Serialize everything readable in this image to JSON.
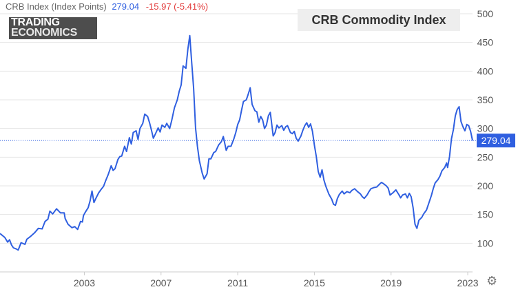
{
  "header": {
    "name": "CRB Index (Index Points)",
    "price": "279.04",
    "change": "-15.97 (-5.41%)"
  },
  "logo": {
    "line1": "TRADING",
    "line2": "ECONOMICS"
  },
  "chart_title": "CRB Commodity Index",
  "settings_icon": "gear-icon",
  "colors": {
    "line": "#2f5fe0",
    "price_tag": "#2f5fe0",
    "change": "#e23b3b",
    "grid": "#e6e6e6"
  },
  "chart_data": {
    "type": "line",
    "title": "CRB Commodity Index",
    "xlabel": "",
    "ylabel": "",
    "xlim": [
      1998.6,
      2023.25
    ],
    "ylim": [
      50,
      500
    ],
    "x_ticks": [
      "2003",
      "2007",
      "2011",
      "2015",
      "2019",
      "2023"
    ],
    "y_ticks": [
      "100",
      "150",
      "200",
      "250",
      "300",
      "350",
      "400",
      "450",
      "500"
    ],
    "grid": "horizontal",
    "current_value": "279.04",
    "series": [
      {
        "points": [
          [
            1998.6,
            117
          ],
          [
            1998.85,
            110
          ],
          [
            1999.0,
            102
          ],
          [
            1999.1,
            106
          ],
          [
            1999.2,
            97
          ],
          [
            1999.3,
            92
          ],
          [
            1999.45,
            90
          ],
          [
            1999.55,
            88
          ],
          [
            1999.7,
            101
          ],
          [
            1999.9,
            98
          ],
          [
            2000.0,
            107
          ],
          [
            2000.2,
            112
          ],
          [
            2000.4,
            118
          ],
          [
            2000.6,
            126
          ],
          [
            2000.8,
            125
          ],
          [
            2000.95,
            138
          ],
          [
            2001.1,
            142
          ],
          [
            2001.2,
            156
          ],
          [
            2001.35,
            151
          ],
          [
            2001.55,
            160
          ],
          [
            2001.75,
            153
          ],
          [
            2001.95,
            153
          ],
          [
            2002.0,
            143
          ],
          [
            2002.15,
            133
          ],
          [
            2002.35,
            127
          ],
          [
            2002.5,
            129
          ],
          [
            2002.65,
            124
          ],
          [
            2002.8,
            138
          ],
          [
            2002.9,
            137
          ],
          [
            2002.95,
            148
          ],
          [
            2003.05,
            154
          ],
          [
            2003.2,
            162
          ],
          [
            2003.3,
            174
          ],
          [
            2003.4,
            191
          ],
          [
            2003.5,
            171
          ],
          [
            2003.6,
            178
          ],
          [
            2003.75,
            188
          ],
          [
            2003.9,
            195
          ],
          [
            2004.0,
            199
          ],
          [
            2004.1,
            208
          ],
          [
            2004.25,
            220
          ],
          [
            2004.4,
            235
          ],
          [
            2004.5,
            227
          ],
          [
            2004.6,
            230
          ],
          [
            2004.75,
            246
          ],
          [
            2004.85,
            251
          ],
          [
            2004.95,
            252
          ],
          [
            2005.1,
            269
          ],
          [
            2005.2,
            260
          ],
          [
            2005.35,
            284
          ],
          [
            2005.45,
            273
          ],
          [
            2005.55,
            293
          ],
          [
            2005.7,
            296
          ],
          [
            2005.8,
            281
          ],
          [
            2005.9,
            300
          ],
          [
            2006.05,
            309
          ],
          [
            2006.15,
            325
          ],
          [
            2006.3,
            321
          ],
          [
            2006.4,
            310
          ],
          [
            2006.5,
            297
          ],
          [
            2006.6,
            283
          ],
          [
            2006.7,
            290
          ],
          [
            2006.85,
            301
          ],
          [
            2006.95,
            294
          ],
          [
            2007.05,
            306
          ],
          [
            2007.2,
            302
          ],
          [
            2007.3,
            309
          ],
          [
            2007.45,
            300
          ],
          [
            2007.55,
            313
          ],
          [
            2007.7,
            336
          ],
          [
            2007.85,
            350
          ],
          [
            2007.95,
            365
          ],
          [
            2008.05,
            376
          ],
          [
            2008.15,
            409
          ],
          [
            2008.3,
            405
          ],
          [
            2008.4,
            438
          ],
          [
            2008.5,
            462
          ],
          [
            2008.6,
            415
          ],
          [
            2008.7,
            370
          ],
          [
            2008.8,
            301
          ],
          [
            2008.9,
            269
          ],
          [
            2009.0,
            244
          ],
          [
            2009.15,
            222
          ],
          [
            2009.25,
            212
          ],
          [
            2009.4,
            221
          ],
          [
            2009.5,
            247
          ],
          [
            2009.6,
            247
          ],
          [
            2009.75,
            258
          ],
          [
            2009.85,
            260
          ],
          [
            2010.0,
            271
          ],
          [
            2010.15,
            277
          ],
          [
            2010.25,
            286
          ],
          [
            2010.4,
            262
          ],
          [
            2010.5,
            269
          ],
          [
            2010.65,
            269
          ],
          [
            2010.8,
            282
          ],
          [
            2010.9,
            293
          ],
          [
            2011.0,
            307
          ],
          [
            2011.1,
            315
          ],
          [
            2011.2,
            332
          ],
          [
            2011.3,
            347
          ],
          [
            2011.45,
            350
          ],
          [
            2011.55,
            360
          ],
          [
            2011.65,
            371
          ],
          [
            2011.75,
            342
          ],
          [
            2011.9,
            331
          ],
          [
            2012.0,
            329
          ],
          [
            2012.1,
            311
          ],
          [
            2012.2,
            321
          ],
          [
            2012.3,
            315
          ],
          [
            2012.4,
            300
          ],
          [
            2012.5,
            306
          ],
          [
            2012.6,
            322
          ],
          [
            2012.7,
            328
          ],
          [
            2012.85,
            287
          ],
          [
            2012.95,
            293
          ],
          [
            2013.05,
            306
          ],
          [
            2013.15,
            301
          ],
          [
            2013.3,
            305
          ],
          [
            2013.4,
            297
          ],
          [
            2013.5,
            303
          ],
          [
            2013.6,
            305
          ],
          [
            2013.75,
            293
          ],
          [
            2013.85,
            291
          ],
          [
            2013.95,
            295
          ],
          [
            2014.05,
            283
          ],
          [
            2014.15,
            278
          ],
          [
            2014.3,
            287
          ],
          [
            2014.4,
            297
          ],
          [
            2014.5,
            305
          ],
          [
            2014.6,
            310
          ],
          [
            2014.7,
            302
          ],
          [
            2014.8,
            308
          ],
          [
            2014.9,
            295
          ],
          [
            2015.0,
            271
          ],
          [
            2015.1,
            251
          ],
          [
            2015.2,
            225
          ],
          [
            2015.3,
            215
          ],
          [
            2015.4,
            228
          ],
          [
            2015.5,
            210
          ],
          [
            2015.6,
            199
          ],
          [
            2015.75,
            186
          ],
          [
            2015.9,
            177
          ],
          [
            2016.0,
            168
          ],
          [
            2016.1,
            166
          ],
          [
            2016.2,
            178
          ],
          [
            2016.3,
            185
          ],
          [
            2016.45,
            191
          ],
          [
            2016.55,
            186
          ],
          [
            2016.7,
            190
          ],
          [
            2016.85,
            188
          ],
          [
            2016.95,
            192
          ],
          [
            2017.1,
            195
          ],
          [
            2017.25,
            190
          ],
          [
            2017.4,
            186
          ],
          [
            2017.5,
            181
          ],
          [
            2017.6,
            178
          ],
          [
            2017.75,
            184
          ],
          [
            2017.85,
            190
          ],
          [
            2017.95,
            195
          ],
          [
            2018.1,
            197
          ],
          [
            2018.25,
            198
          ],
          [
            2018.4,
            203
          ],
          [
            2018.5,
            206
          ],
          [
            2018.6,
            204
          ],
          [
            2018.75,
            200
          ],
          [
            2018.85,
            196
          ],
          [
            2018.95,
            184
          ],
          [
            2019.1,
            188
          ],
          [
            2019.25,
            193
          ],
          [
            2019.4,
            185
          ],
          [
            2019.5,
            179
          ],
          [
            2019.6,
            184
          ],
          [
            2019.75,
            186
          ],
          [
            2019.85,
            179
          ],
          [
            2019.95,
            187
          ],
          [
            2020.05,
            181
          ],
          [
            2020.15,
            162
          ],
          [
            2020.25,
            133
          ],
          [
            2020.35,
            126
          ],
          [
            2020.45,
            140
          ],
          [
            2020.6,
            145
          ],
          [
            2020.7,
            151
          ],
          [
            2020.85,
            158
          ],
          [
            2020.95,
            168
          ],
          [
            2021.1,
            183
          ],
          [
            2021.2,
            195
          ],
          [
            2021.3,
            205
          ],
          [
            2021.45,
            211
          ],
          [
            2021.55,
            217
          ],
          [
            2021.65,
            226
          ],
          [
            2021.8,
            232
          ],
          [
            2021.9,
            240
          ],
          [
            2021.95,
            232
          ],
          [
            2022.05,
            251
          ],
          [
            2022.15,
            282
          ],
          [
            2022.25,
            298
          ],
          [
            2022.35,
            322
          ],
          [
            2022.45,
            333
          ],
          [
            2022.55,
            338
          ],
          [
            2022.65,
            312
          ],
          [
            2022.75,
            303
          ],
          [
            2022.85,
            296
          ],
          [
            2022.95,
            307
          ],
          [
            2023.05,
            305
          ],
          [
            2023.15,
            295
          ],
          [
            2023.25,
            279
          ]
        ]
      }
    ]
  }
}
